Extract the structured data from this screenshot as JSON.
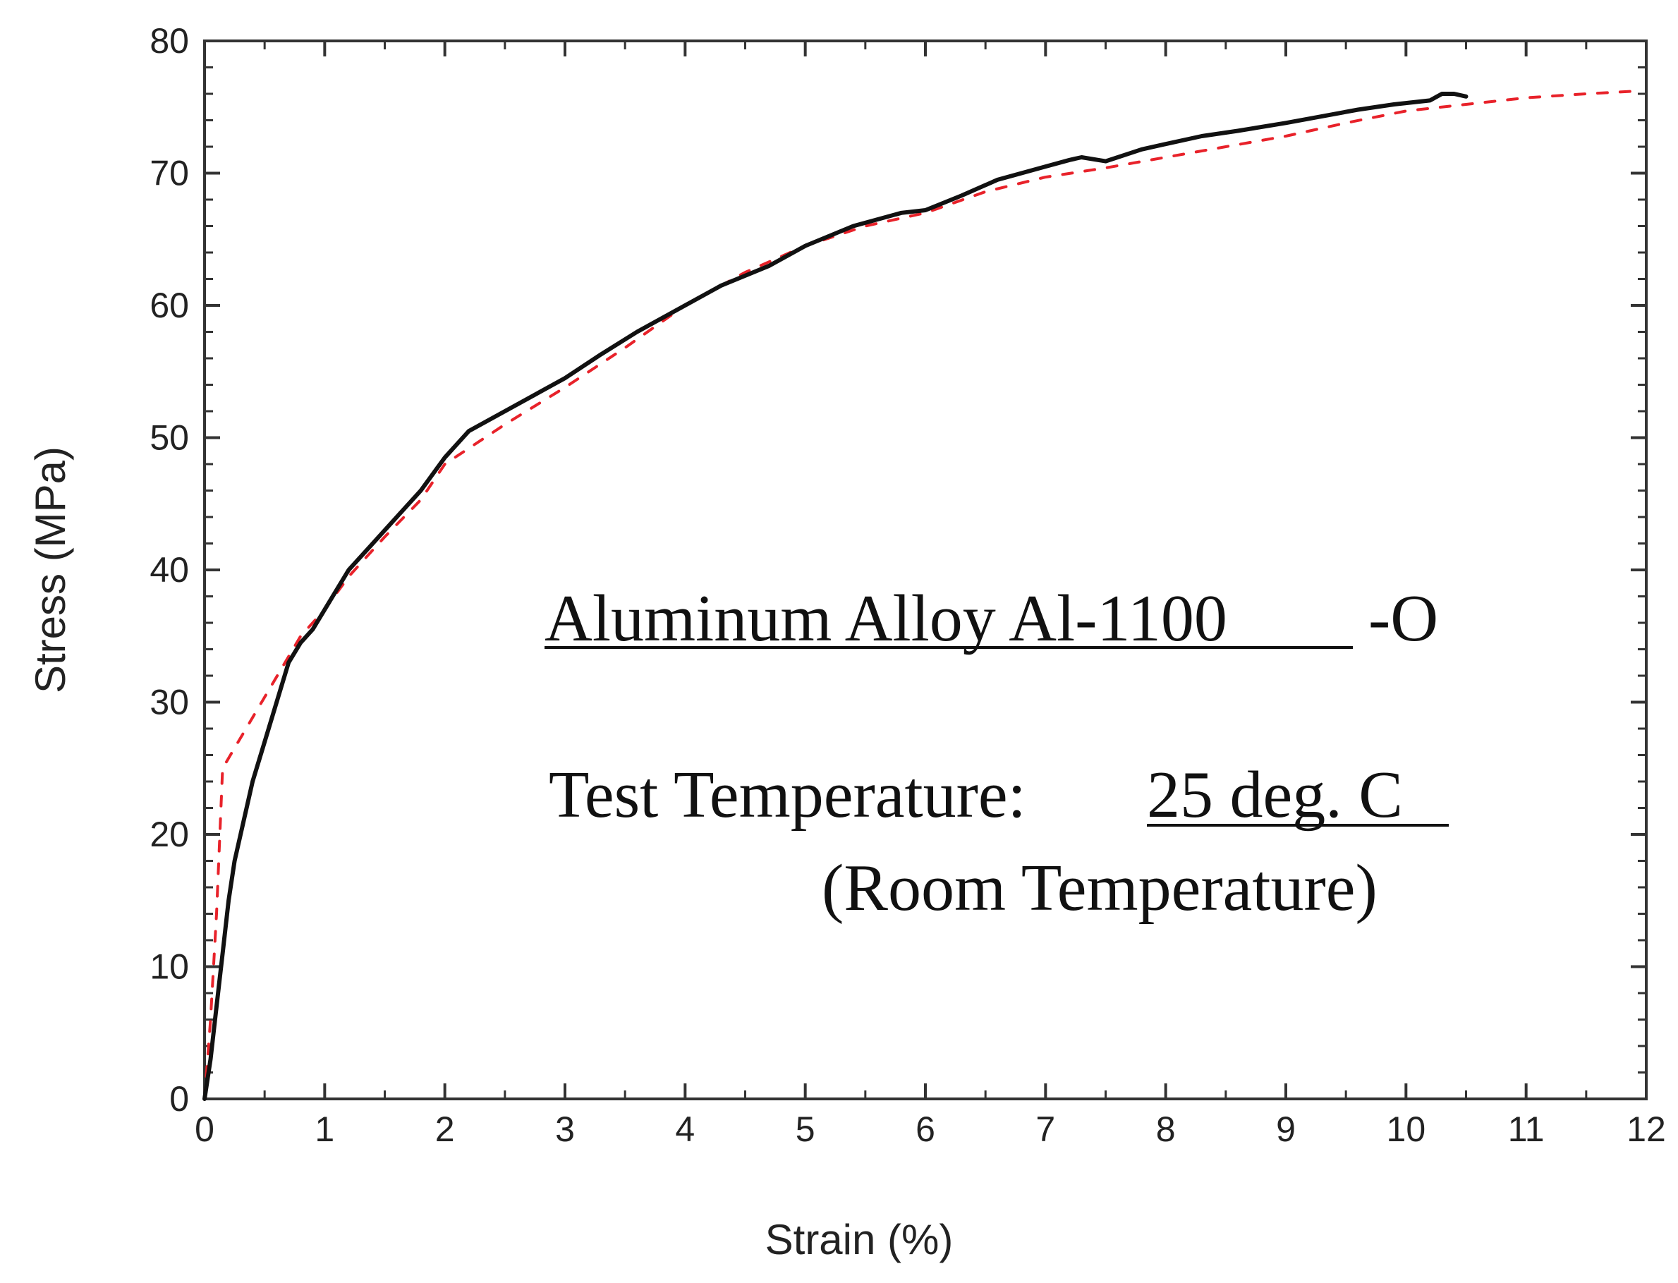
{
  "chart_data": {
    "type": "line",
    "title": "",
    "xlabel": "Strain (%)",
    "ylabel": "Stress (MPa)",
    "xlim": [
      0,
      12
    ],
    "ylim": [
      0,
      80
    ],
    "x_ticks": [
      "0",
      "1",
      "2",
      "3",
      "4",
      "5",
      "6",
      "7",
      "8",
      "9",
      "10",
      "11",
      "12"
    ],
    "y_ticks": [
      "0",
      "10",
      "20",
      "30",
      "40",
      "50",
      "60",
      "70",
      "80"
    ],
    "grid": false,
    "legend": "none",
    "colors": {
      "experimental": "#111111",
      "fit": "#e8222a",
      "axis": "#333333"
    },
    "series": [
      {
        "style": "solid-black",
        "x": [
          0,
          0.05,
          0.1,
          0.15,
          0.2,
          0.25,
          0.3,
          0.4,
          0.5,
          0.6,
          0.7,
          0.8,
          0.9,
          1.0,
          1.1,
          1.2,
          1.4,
          1.6,
          1.8,
          2.0,
          2.2,
          2.4,
          2.6,
          2.8,
          3.0,
          3.3,
          3.6,
          4.0,
          4.3,
          4.7,
          5.0,
          5.4,
          5.8,
          6.0,
          6.3,
          6.6,
          7.0,
          7.2,
          7.3,
          7.5,
          7.8,
          8.0,
          8.3,
          8.6,
          9.0,
          9.3,
          9.6,
          9.9,
          10.2,
          10.3,
          10.4,
          10.5
        ],
        "y": [
          0,
          3,
          7,
          11,
          15,
          18,
          20,
          24,
          27,
          30,
          33,
          34.5,
          35.5,
          37,
          38.5,
          40,
          42,
          44,
          46,
          48.5,
          50.5,
          51.5,
          52.5,
          53.5,
          54.5,
          56.3,
          58,
          60,
          61.5,
          63,
          64.5,
          66,
          67,
          67.2,
          68.3,
          69.5,
          70.5,
          71,
          71.2,
          70.9,
          71.8,
          72.2,
          72.8,
          73.2,
          73.8,
          74.3,
          74.8,
          75.2,
          75.5,
          76,
          76,
          75.8
        ]
      },
      {
        "style": "dashed-red",
        "x": [
          0,
          0.05,
          0.1,
          0.15,
          0.8,
          1.0,
          1.2,
          1.5,
          1.8,
          2.0,
          2.5,
          3.0,
          3.5,
          4.0,
          4.5,
          5.0,
          5.5,
          6.0,
          6.5,
          7.0,
          7.5,
          8.0,
          8.5,
          9.0,
          9.5,
          10.0,
          10.5,
          11.0,
          11.5,
          11.9
        ],
        "y": [
          0,
          6,
          14,
          25,
          35,
          37,
          39.5,
          42.5,
          45.3,
          48,
          51,
          53.8,
          56.8,
          60,
          62.5,
          64.5,
          66,
          67,
          68.6,
          69.7,
          70.4,
          71.2,
          72,
          72.8,
          73.8,
          74.7,
          75.2,
          75.7,
          76,
          76.2
        ]
      }
    ]
  },
  "annotations": {
    "alloy_name": "Aluminum Alloy Al-1100",
    "alloy_temper": "-O",
    "test_temp_label": "Test Temperature:",
    "test_temp_value": "25 deg. C",
    "room_temp": "(Room Temperature)"
  }
}
